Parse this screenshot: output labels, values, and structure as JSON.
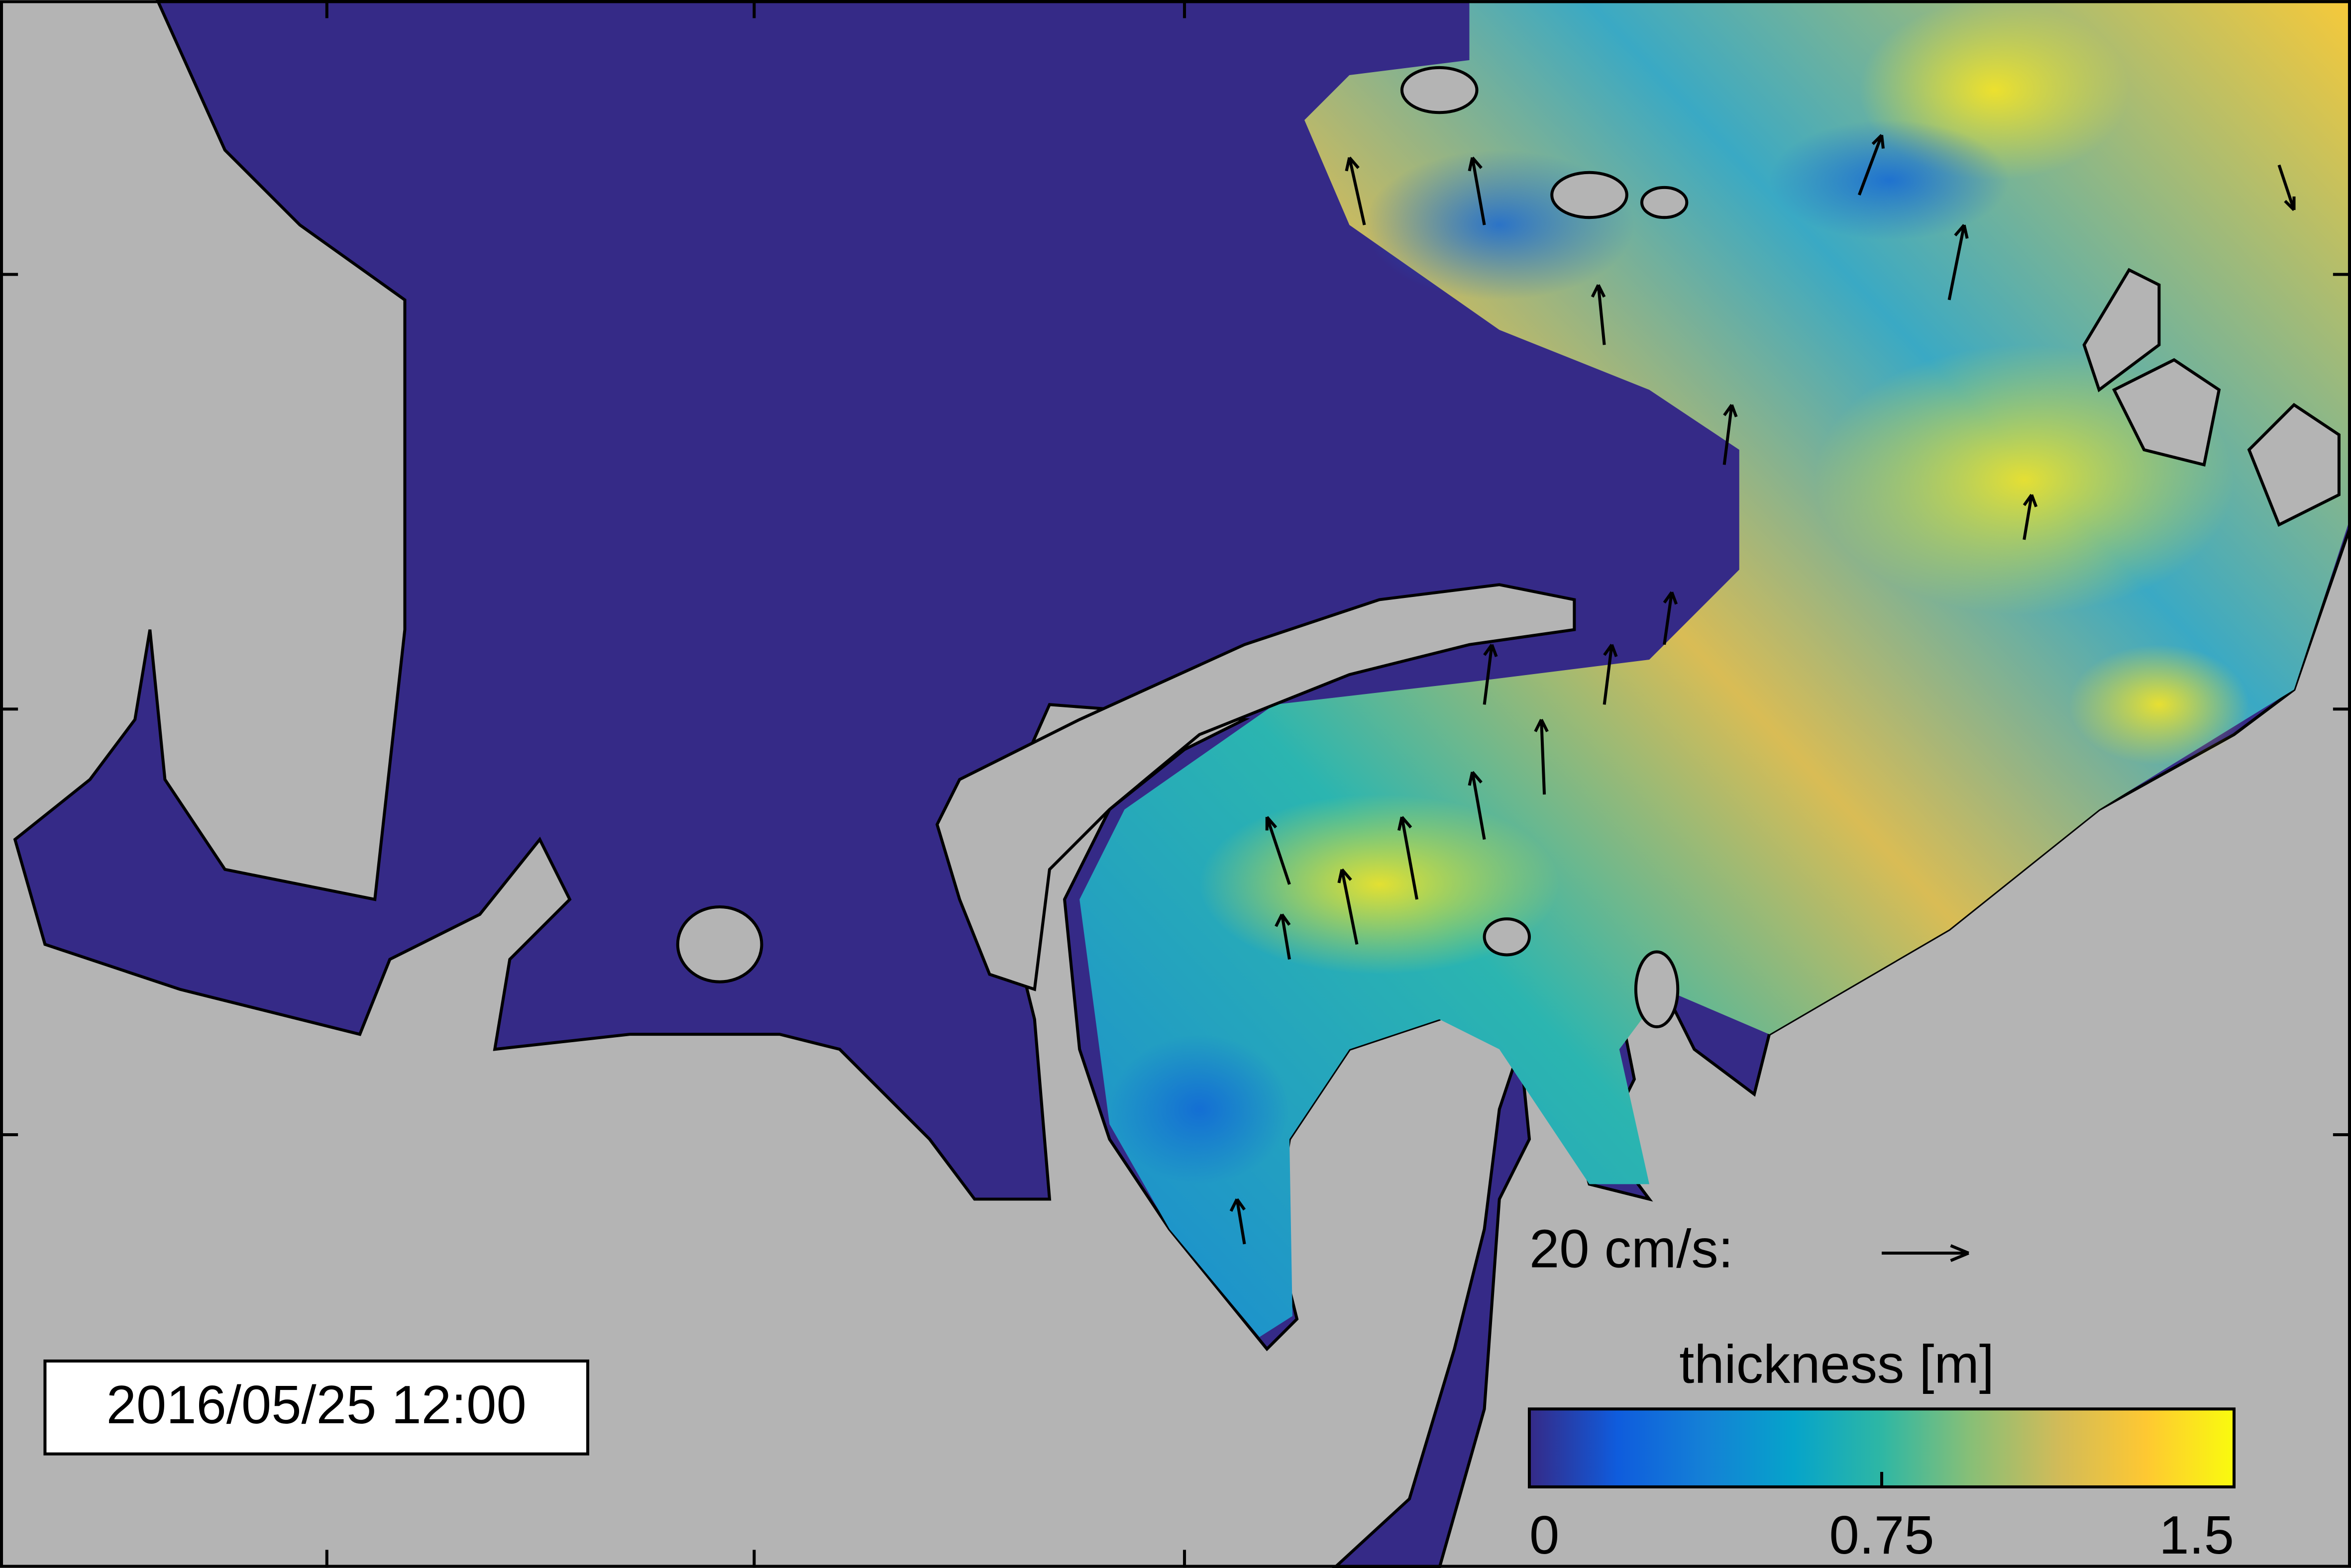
{
  "timestamp": "2016/05/25 12:00",
  "scale_arrow": {
    "label": "20 cm/s:"
  },
  "colorbar": {
    "label": "thickness [m]",
    "range": [
      0,
      1.5
    ],
    "ticks": [
      0,
      0.75,
      1.5
    ],
    "colors": [
      "#352a87",
      "#0f5cdd",
      "#1481d6",
      "#06a4ca",
      "#2eb7a4",
      "#87bf77",
      "#d1bb59",
      "#fec832",
      "#f9fb0e"
    ]
  }
}
